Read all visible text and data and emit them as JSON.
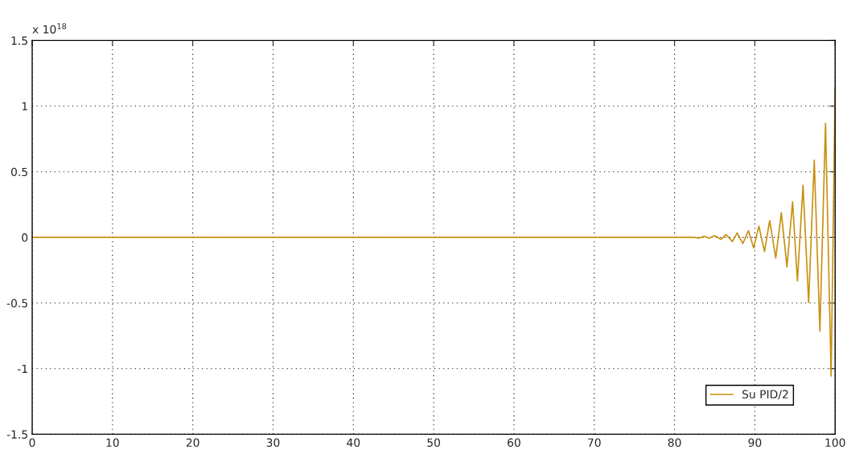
{
  "chart_data": {
    "type": "line",
    "xlim": [
      0,
      100
    ],
    "xticks": [
      0,
      10,
      20,
      30,
      40,
      50,
      60,
      70,
      80,
      90,
      100
    ],
    "ylim": [
      -1.5,
      1.5
    ],
    "yticks": [
      -1.5,
      -1,
      -0.5,
      0,
      0.5,
      1,
      1.5
    ],
    "grid": true,
    "legend": "bottom right",
    "line_style": "solid",
    "marker": "none",
    "annotations": [
      "x 10$^{18}$"
    ],
    "series": [
      {
        "name": "Su PID/2",
        "color": "#c8900f",
        "x": [
          0,
          82.4,
          83.0,
          83.7,
          84.3,
          85.0,
          85.8,
          86.4,
          87.2,
          87.8,
          88.5,
          89.2,
          89.85,
          90.5,
          91.2,
          91.85,
          92.6,
          93.3,
          94.0,
          94.7,
          95.3,
          96.0,
          96.7,
          97.4,
          98.1,
          98.8,
          99.5,
          100
        ],
        "values": [
          0,
          0,
          -0.005,
          0.008,
          -0.007,
          0.013,
          -0.016,
          0.022,
          -0.032,
          0.034,
          -0.047,
          0.051,
          -0.08,
          0.086,
          -0.108,
          0.128,
          -0.157,
          0.188,
          -0.225,
          0.271,
          -0.333,
          0.398,
          -0.496,
          0.588,
          -0.715,
          0.868,
          -1.057,
          1.145
        ]
      }
    ]
  }
}
